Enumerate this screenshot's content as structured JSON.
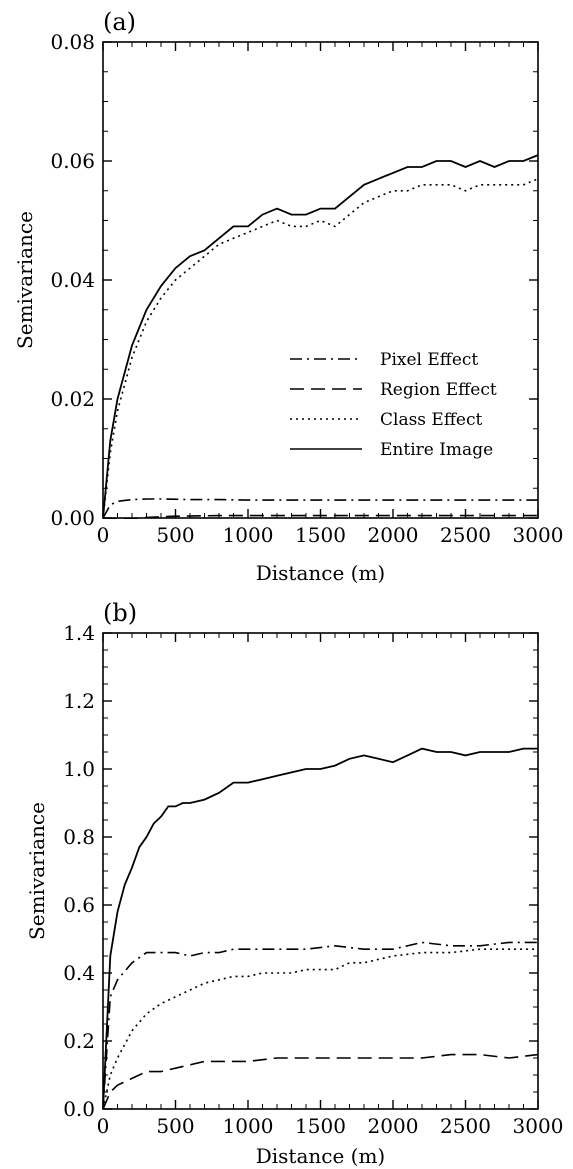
{
  "chart_data": [
    {
      "panel_label": "(a)",
      "type": "line",
      "xlabel": "Distance (m)",
      "ylabel": "Semivariance",
      "xlim": [
        0,
        3000
      ],
      "ylim": [
        0,
        0.08
      ],
      "xticks": [
        0,
        500,
        1000,
        1500,
        2000,
        2500,
        3000
      ],
      "yticks": [
        0.0,
        0.02,
        0.04,
        0.06,
        0.08
      ],
      "ytick_labels": [
        "0.00",
        "0.02",
        "0.04",
        "0.06",
        "0.08"
      ],
      "xtick_labels": [
        "0",
        "500",
        "1000",
        "1500",
        "2000",
        "2500",
        "3000"
      ],
      "legend": "inside-lower-right",
      "series": [
        {
          "name": "Pixel Effect",
          "style": "dashdot",
          "x": [
            0,
            50,
            100,
            200,
            300,
            400,
            600,
            800,
            1000,
            1500,
            2000,
            2500,
            3000
          ],
          "y": [
            0.0,
            0.0022,
            0.0028,
            0.0031,
            0.0032,
            0.0032,
            0.0031,
            0.0031,
            0.003,
            0.003,
            0.003,
            0.003,
            0.003
          ]
        },
        {
          "name": "Region Effect",
          "style": "dashed",
          "x": [
            0,
            50,
            100,
            200,
            300,
            500,
            800,
            1000,
            1500,
            2000,
            2500,
            3000
          ],
          "y": [
            0.0,
            -0.0001,
            -0.0002,
            -0.0001,
            0.0001,
            0.0003,
            0.0004,
            0.0004,
            0.0004,
            0.0004,
            0.0004,
            0.0004
          ]
        },
        {
          "name": "Class Effect",
          "style": "dotted",
          "x": [
            0,
            50,
            100,
            200,
            300,
            400,
            500,
            600,
            700,
            800,
            900,
            1000,
            1100,
            1200,
            1300,
            1400,
            1500,
            1600,
            1700,
            1800,
            1900,
            2000,
            2100,
            2200,
            2300,
            2400,
            2500,
            2600,
            2700,
            2800,
            2900,
            3000
          ],
          "y": [
            0.0,
            0.011,
            0.018,
            0.027,
            0.033,
            0.037,
            0.04,
            0.042,
            0.044,
            0.046,
            0.047,
            0.048,
            0.049,
            0.05,
            0.049,
            0.049,
            0.05,
            0.049,
            0.051,
            0.053,
            0.054,
            0.055,
            0.055,
            0.056,
            0.056,
            0.056,
            0.055,
            0.056,
            0.056,
            0.056,
            0.056,
            0.057
          ]
        },
        {
          "name": "Entire Image",
          "style": "solid",
          "x": [
            0,
            50,
            100,
            200,
            300,
            400,
            500,
            600,
            700,
            800,
            900,
            1000,
            1100,
            1200,
            1300,
            1400,
            1500,
            1600,
            1700,
            1800,
            1900,
            2000,
            2100,
            2200,
            2300,
            2400,
            2500,
            2600,
            2700,
            2800,
            2900,
            3000
          ],
          "y": [
            0.0,
            0.013,
            0.02,
            0.029,
            0.035,
            0.039,
            0.042,
            0.044,
            0.045,
            0.047,
            0.049,
            0.049,
            0.051,
            0.052,
            0.051,
            0.051,
            0.052,
            0.052,
            0.054,
            0.056,
            0.057,
            0.058,
            0.059,
            0.059,
            0.06,
            0.06,
            0.059,
            0.06,
            0.059,
            0.06,
            0.06,
            0.061
          ]
        }
      ]
    },
    {
      "panel_label": "(b)",
      "type": "line",
      "xlabel": "Distance (m)",
      "ylabel": "Semivariance",
      "xlim": [
        0,
        3000
      ],
      "ylim": [
        0,
        1.4
      ],
      "xticks": [
        0,
        500,
        1000,
        1500,
        2000,
        2500,
        3000
      ],
      "yticks": [
        0.0,
        0.2,
        0.4,
        0.6,
        0.8,
        1.0,
        1.2,
        1.4
      ],
      "ytick_labels": [
        "0.0",
        "0.2",
        "0.4",
        "0.6",
        "0.8",
        "1.0",
        "1.2",
        "1.4"
      ],
      "xtick_labels": [
        "0",
        "500",
        "1000",
        "1500",
        "2000",
        "2500",
        "3000"
      ],
      "series": [
        {
          "name": "Pixel Effect",
          "style": "dashdot",
          "x": [
            0,
            50,
            100,
            200,
            300,
            400,
            500,
            600,
            700,
            800,
            900,
            1000,
            1200,
            1400,
            1600,
            1800,
            2000,
            2200,
            2400,
            2600,
            2800,
            3000
          ],
          "y": [
            0.0,
            0.33,
            0.38,
            0.43,
            0.46,
            0.46,
            0.46,
            0.45,
            0.46,
            0.46,
            0.47,
            0.47,
            0.47,
            0.47,
            0.48,
            0.47,
            0.47,
            0.49,
            0.48,
            0.48,
            0.49,
            0.49
          ]
        },
        {
          "name": "Region Effect",
          "style": "dashed",
          "x": [
            0,
            50,
            100,
            200,
            300,
            400,
            500,
            600,
            700,
            800,
            1000,
            1200,
            1500,
            1800,
            2000,
            2200,
            2400,
            2600,
            2800,
            3000
          ],
          "y": [
            0.0,
            0.05,
            0.07,
            0.09,
            0.11,
            0.11,
            0.12,
            0.13,
            0.14,
            0.14,
            0.14,
            0.15,
            0.15,
            0.15,
            0.15,
            0.15,
            0.16,
            0.16,
            0.15,
            0.16
          ]
        },
        {
          "name": "Class Effect",
          "style": "dotted",
          "x": [
            0,
            50,
            100,
            200,
            300,
            400,
            500,
            600,
            700,
            800,
            900,
            1000,
            1100,
            1200,
            1300,
            1400,
            1500,
            1600,
            1700,
            1800,
            1900,
            2000,
            2200,
            2400,
            2600,
            2800,
            3000
          ],
          "y": [
            0.0,
            0.1,
            0.15,
            0.23,
            0.28,
            0.31,
            0.33,
            0.35,
            0.37,
            0.38,
            0.39,
            0.39,
            0.4,
            0.4,
            0.4,
            0.41,
            0.41,
            0.41,
            0.43,
            0.43,
            0.44,
            0.45,
            0.46,
            0.46,
            0.47,
            0.47,
            0.47
          ]
        },
        {
          "name": "Entire Image",
          "style": "solid",
          "x": [
            0,
            50,
            100,
            150,
            200,
            250,
            300,
            350,
            400,
            450,
            500,
            550,
            600,
            700,
            800,
            900,
            1000,
            1100,
            1200,
            1300,
            1400,
            1500,
            1600,
            1700,
            1800,
            1900,
            2000,
            2100,
            2200,
            2300,
            2400,
            2500,
            2600,
            2700,
            2800,
            2900,
            3000
          ],
          "y": [
            0.0,
            0.45,
            0.58,
            0.66,
            0.71,
            0.77,
            0.8,
            0.84,
            0.86,
            0.89,
            0.89,
            0.9,
            0.9,
            0.91,
            0.93,
            0.96,
            0.96,
            0.97,
            0.98,
            0.99,
            1.0,
            1.0,
            1.01,
            1.03,
            1.04,
            1.03,
            1.02,
            1.04,
            1.06,
            1.05,
            1.05,
            1.04,
            1.05,
            1.05,
            1.05,
            1.06,
            1.06
          ]
        }
      ]
    }
  ]
}
